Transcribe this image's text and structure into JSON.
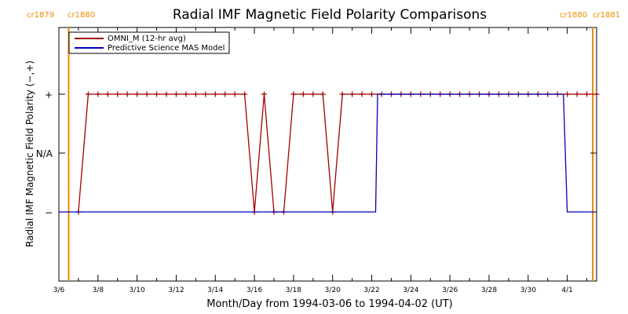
{
  "chart_data": {
    "type": "line",
    "title": "Radial IMF Magnetic Field Polarity Comparisons",
    "xlabel": "Month/Day from 1994-03-06 to 1994-04-02 (UT)",
    "ylabel": "Radial IMF Magnetic Field Polarity (−,+)",
    "x_range_days": [
      0,
      27.5
    ],
    "x_start_date": "1994-03-06",
    "x_ticks": [
      {
        "day": 0,
        "label": "3/6"
      },
      {
        "day": 2,
        "label": "3/8"
      },
      {
        "day": 4,
        "label": "3/10"
      },
      {
        "day": 6,
        "label": "3/12"
      },
      {
        "day": 8,
        "label": "3/14"
      },
      {
        "day": 10,
        "label": "3/16"
      },
      {
        "day": 12,
        "label": "3/18"
      },
      {
        "day": 14,
        "label": "3/20"
      },
      {
        "day": 16,
        "label": "3/22"
      },
      {
        "day": 18,
        "label": "3/24"
      },
      {
        "day": 20,
        "label": "3/26"
      },
      {
        "day": 22,
        "label": "3/28"
      },
      {
        "day": 24,
        "label": "3/30"
      },
      {
        "day": 26,
        "label": "4/1"
      }
    ],
    "y_ticks": [
      {
        "value": 1,
        "label": "+"
      },
      {
        "value": 0,
        "label": "N/A"
      },
      {
        "value": -1,
        "label": "−"
      }
    ],
    "ylim": [
      -2.2,
      2.2
    ],
    "legend": {
      "placement": "top-left"
    },
    "series": [
      {
        "name": "OMNI_M (12-hr avg)",
        "color": "#a00000",
        "marker": "+",
        "points": [
          [
            1.0,
            -1
          ],
          [
            1.5,
            1
          ],
          [
            2.0,
            1
          ],
          [
            2.5,
            1
          ],
          [
            3.0,
            1
          ],
          [
            3.5,
            1
          ],
          [
            4.0,
            1
          ],
          [
            4.5,
            1
          ],
          [
            5.0,
            1
          ],
          [
            5.5,
            1
          ],
          [
            6.0,
            1
          ],
          [
            6.5,
            1
          ],
          [
            7.0,
            1
          ],
          [
            7.5,
            1
          ],
          [
            8.0,
            1
          ],
          [
            8.5,
            1
          ],
          [
            9.0,
            1
          ],
          [
            9.5,
            1
          ],
          [
            10.0,
            -1
          ],
          [
            10.5,
            1
          ],
          [
            11.0,
            -1
          ],
          [
            11.5,
            -1
          ],
          [
            12.0,
            1
          ],
          [
            12.5,
            1
          ],
          [
            13.0,
            1
          ],
          [
            13.5,
            1
          ],
          [
            14.0,
            -1
          ],
          [
            14.5,
            1
          ],
          [
            15.0,
            1
          ],
          [
            15.5,
            1
          ],
          [
            16.0,
            1
          ],
          [
            16.5,
            1
          ],
          [
            17.0,
            1
          ],
          [
            17.5,
            1
          ],
          [
            18.0,
            1
          ],
          [
            18.5,
            1
          ],
          [
            19.0,
            1
          ],
          [
            19.5,
            1
          ],
          [
            20.0,
            1
          ],
          [
            20.5,
            1
          ],
          [
            21.0,
            1
          ],
          [
            21.5,
            1
          ],
          [
            22.0,
            1
          ],
          [
            22.5,
            1
          ],
          [
            23.0,
            1
          ],
          [
            23.5,
            1
          ],
          [
            24.0,
            1
          ],
          [
            24.5,
            1
          ],
          [
            25.0,
            1
          ],
          [
            25.5,
            1
          ],
          [
            26.0,
            1
          ],
          [
            26.5,
            1
          ],
          [
            27.0,
            1
          ],
          [
            27.5,
            1
          ]
        ]
      },
      {
        "name": "Predictive Science MAS Model",
        "color": "#0000c0",
        "marker": "none",
        "points": [
          [
            0.0,
            -1
          ],
          [
            16.2,
            -1
          ],
          [
            16.3,
            1
          ],
          [
            25.8,
            1
          ],
          [
            26.0,
            -1
          ],
          [
            27.4,
            -1
          ]
        ]
      }
    ],
    "carrington_markers": [
      {
        "day": 0.5,
        "labels": [
          "cr1879",
          "cr1880"
        ],
        "label_side": "left"
      },
      {
        "day": 27.3,
        "labels": [
          "cr1880",
          "cr1881"
        ],
        "label_side": "right"
      }
    ],
    "marker_color": "#f08a00",
    "grid": false
  }
}
